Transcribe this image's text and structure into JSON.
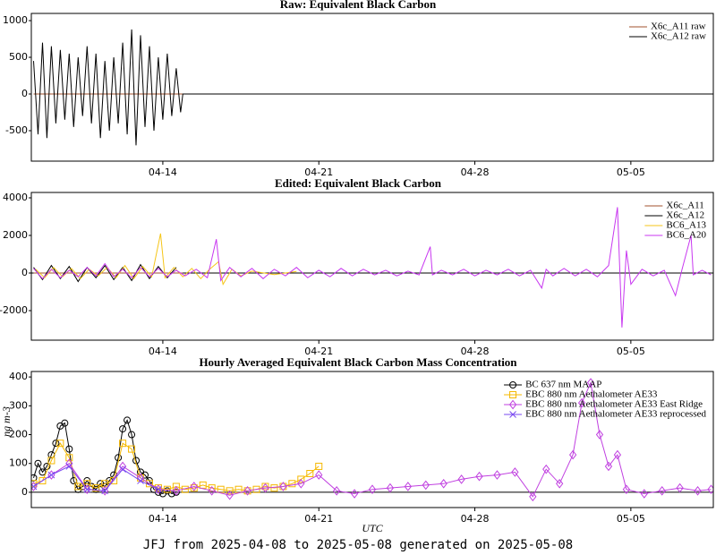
{
  "chart_data": [
    {
      "type": "line",
      "title": "Raw: Equivalent Black Carbon",
      "xlim": [
        98.1,
        128.7
      ],
      "xticks": [
        {
          "value": 104,
          "label": "04-14"
        },
        {
          "value": 111,
          "label": "04-21"
        },
        {
          "value": 118,
          "label": "04-28"
        },
        {
          "value": 125,
          "label": "05-05"
        }
      ],
      "ylim": [
        -915,
        1098
      ],
      "yticks": [
        -500,
        0,
        500,
        1000
      ],
      "legend": "upper right",
      "zero_line": false,
      "series": [
        {
          "name": "X6c_A11 raw",
          "color": "#a0522d",
          "x": [
            98.2,
            104.9,
            128.7
          ],
          "values": [
            0,
            0,
            0
          ]
        },
        {
          "name": "X6c_A12 raw",
          "color": "#000000",
          "x": [
            98.2,
            98.4,
            98.6,
            98.8,
            99.0,
            99.2,
            99.4,
            99.6,
            99.8,
            100.0,
            100.2,
            100.4,
            100.6,
            100.8,
            101.0,
            101.2,
            101.4,
            101.6,
            101.8,
            102.0,
            102.2,
            102.4,
            102.6,
            102.8,
            103.0,
            103.2,
            103.4,
            103.6,
            103.8,
            104.0,
            104.2,
            104.4,
            104.6,
            104.8,
            104.9,
            128.7
          ],
          "values": [
            450,
            -550,
            700,
            -600,
            650,
            -400,
            600,
            -350,
            550,
            -450,
            500,
            -300,
            650,
            -400,
            550,
            -600,
            450,
            -500,
            500,
            -400,
            700,
            -550,
            880,
            -700,
            800,
            -450,
            650,
            -500,
            500,
            -350,
            550,
            -300,
            350,
            -250,
            0,
            0
          ]
        }
      ]
    },
    {
      "type": "line",
      "title": "Edited: Equivalent Black Carbon",
      "xlim": [
        98.1,
        128.7
      ],
      "xticks": [
        {
          "value": 104,
          "label": "04-14"
        },
        {
          "value": 111,
          "label": "04-21"
        },
        {
          "value": 118,
          "label": "04-28"
        },
        {
          "value": 125,
          "label": "05-05"
        }
      ],
      "ylim": [
        -3571,
        4286
      ],
      "yticks": [
        -2000,
        0,
        2000,
        4000
      ],
      "legend": "upper right",
      "zero_line": true,
      "series": [
        {
          "name": "X6c_A11",
          "color": "#a0522d",
          "x": [
            98.2,
            104.9
          ],
          "values": [
            0,
            0
          ]
        },
        {
          "name": "X6c_A12",
          "color": "#000000",
          "x": [
            98.2,
            98.6,
            99.0,
            99.4,
            99.8,
            100.2,
            100.6,
            101.0,
            101.4,
            101.8,
            102.2,
            102.6,
            103.0,
            103.4,
            103.8,
            104.2,
            104.6
          ],
          "values": [
            300,
            -350,
            400,
            -300,
            350,
            -450,
            300,
            -250,
            400,
            -350,
            300,
            -400,
            450,
            -300,
            350,
            -250,
            300
          ]
        },
        {
          "name": "BC6_A13",
          "color": "#f5c518",
          "x": [
            98.3,
            98.7,
            99.1,
            99.5,
            99.9,
            100.3,
            100.7,
            101.1,
            101.5,
            101.9,
            102.3,
            102.7,
            103.1,
            103.5,
            103.9,
            104.1,
            104.5,
            104.9,
            105.3,
            105.7,
            106.1,
            106.5,
            106.7,
            107.1,
            107.5,
            108.0,
            109.0,
            110.0
          ],
          "values": [
            200,
            -250,
            300,
            -200,
            250,
            -300,
            200,
            -150,
            300,
            -250,
            400,
            -300,
            350,
            -200,
            2100,
            -250,
            300,
            -200,
            250,
            -300,
            200,
            600,
            -600,
            200,
            -150,
            100,
            -80,
            80
          ]
        },
        {
          "name": "BC6_A20",
          "color": "#c837f0",
          "x": [
            98.2,
            98.6,
            99.0,
            99.4,
            99.8,
            100.2,
            100.6,
            101.0,
            101.4,
            101.8,
            102.2,
            102.6,
            103.0,
            103.4,
            103.8,
            104.2,
            104.6,
            105.0,
            105.5,
            106.0,
            106.4,
            106.6,
            107.0,
            107.5,
            108.0,
            108.5,
            109.0,
            109.5,
            110.0,
            110.5,
            111.0,
            111.5,
            112.0,
            112.5,
            113.0,
            113.5,
            114.0,
            114.5,
            115.0,
            115.5,
            116.0,
            116.1,
            116.5,
            117.0,
            117.5,
            118.0,
            118.5,
            119.0,
            119.5,
            120.0,
            120.5,
            121.0,
            121.2,
            121.5,
            122.0,
            122.5,
            123.0,
            123.5,
            124.0,
            124.4,
            124.6,
            124.8,
            125.0,
            125.5,
            126.0,
            126.5,
            127.0,
            127.3,
            127.7,
            127.8,
            128.2,
            128.6
          ],
          "values": [
            250,
            -300,
            200,
            -250,
            150,
            -200,
            300,
            -150,
            500,
            -200,
            200,
            -250,
            300,
            -200,
            250,
            -200,
            150,
            -150,
            200,
            -250,
            1800,
            -400,
            300,
            -200,
            250,
            -300,
            200,
            -150,
            300,
            -250,
            150,
            -200,
            250,
            -150,
            200,
            -100,
            150,
            -150,
            100,
            -100,
            1400,
            -100,
            150,
            -100,
            200,
            -150,
            150,
            -100,
            200,
            -150,
            150,
            -800,
            200,
            -150,
            250,
            -150,
            200,
            -200,
            400,
            3500,
            -2900,
            1200,
            -600,
            200,
            -150,
            150,
            -1200,
            200,
            2000,
            -100,
            150,
            -100
          ]
        }
      ]
    },
    {
      "type": "line",
      "title": "Hourly Averaged Equivalent Black Carbon Mass Concentration",
      "xlabel": "UTC",
      "ylabel": "ng m-3",
      "xlim": [
        98.1,
        128.7
      ],
      "xticks": [
        {
          "value": 104,
          "label": "04-14"
        },
        {
          "value": 111,
          "label": "04-21"
        },
        {
          "value": 118,
          "label": "04-28"
        },
        {
          "value": 125,
          "label": "05-05"
        }
      ],
      "ylim": [
        -53,
        419
      ],
      "yticks": [
        0,
        100,
        200,
        300,
        400
      ],
      "legend": "upper right",
      "zero_line": true,
      "series": [
        {
          "name": "BC 637 nm MAAP",
          "color": "#000000",
          "marker": "circle",
          "x": [
            98.2,
            98.4,
            98.6,
            98.8,
            99.0,
            99.2,
            99.4,
            99.6,
            99.8,
            100.0,
            100.2,
            100.4,
            100.6,
            100.8,
            101.0,
            101.2,
            101.4,
            101.6,
            101.8,
            102.0,
            102.2,
            102.4,
            102.6,
            102.8,
            103.0,
            103.2,
            103.4,
            103.6,
            103.8,
            104.0,
            104.2,
            104.4,
            104.6
          ],
          "values": [
            50,
            100,
            70,
            90,
            130,
            170,
            230,
            240,
            150,
            40,
            10,
            20,
            40,
            20,
            10,
            30,
            20,
            40,
            60,
            120,
            220,
            250,
            200,
            110,
            70,
            60,
            40,
            10,
            0,
            -5,
            5,
            -5,
            0
          ]
        },
        {
          "name": "EBC 880 nm Aethalometer AE33",
          "color": "#f5b800",
          "marker": "square",
          "x": [
            98.2,
            98.6,
            99.0,
            99.4,
            99.8,
            100.2,
            100.6,
            101.0,
            101.4,
            101.8,
            102.2,
            102.6,
            103.0,
            103.4,
            103.8,
            104.2,
            104.6,
            105.0,
            105.4,
            105.8,
            106.2,
            106.6,
            107.0,
            107.4,
            107.8,
            108.2,
            108.6,
            109.0,
            109.4,
            109.8,
            110.2,
            110.6,
            111.0
          ],
          "values": [
            30,
            40,
            110,
            170,
            120,
            20,
            30,
            15,
            30,
            40,
            170,
            150,
            50,
            30,
            15,
            10,
            20,
            10,
            15,
            25,
            15,
            10,
            5,
            10,
            5,
            10,
            20,
            15,
            20,
            30,
            45,
            65,
            90
          ]
        },
        {
          "name": "EBC 880 nm Aethalometer AE33 East Ridge",
          "color": "#c040e0",
          "marker": "diamond",
          "x": [
            98.2,
            99.0,
            99.8,
            100.6,
            101.4,
            102.2,
            103.0,
            103.8,
            104.6,
            105.4,
            106.2,
            107.0,
            107.8,
            108.6,
            109.4,
            110.2,
            111.0,
            111.8,
            112.6,
            113.4,
            114.2,
            115.0,
            115.8,
            116.6,
            117.4,
            118.2,
            119.0,
            119.8,
            120.6,
            121.2,
            121.8,
            122.4,
            122.8,
            123.2,
            123.6,
            124.0,
            124.4,
            124.8,
            125.6,
            126.4,
            127.2,
            128.0,
            128.6
          ],
          "values": [
            20,
            60,
            100,
            10,
            5,
            90,
            50,
            10,
            5,
            20,
            5,
            -10,
            5,
            15,
            20,
            30,
            60,
            5,
            -5,
            10,
            15,
            20,
            25,
            30,
            45,
            55,
            60,
            70,
            -15,
            80,
            30,
            130,
            310,
            380,
            200,
            90,
            130,
            10,
            -5,
            5,
            15,
            5,
            10
          ]
        },
        {
          "name": "EBC 880 nm Aethalometer AE33 reprocessed",
          "color": "#7a4af0",
          "marker": "x",
          "x": [
            98.2,
            99.0,
            99.8,
            100.6,
            101.4,
            102.2,
            103.0,
            103.8
          ],
          "values": [
            20,
            60,
            90,
            10,
            5,
            80,
            40,
            10
          ]
        }
      ]
    }
  ],
  "footer": "JFJ from 2025-04-08 to 2025-05-08 generated on 2025-05-08"
}
